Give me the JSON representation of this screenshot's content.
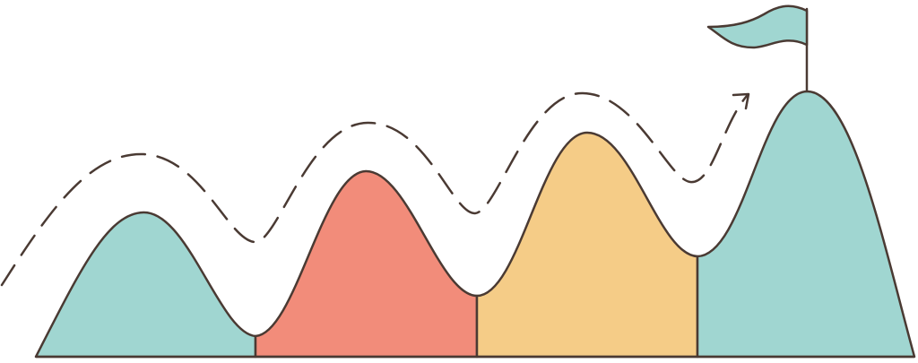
{
  "colors": {
    "outline": "#4a3a33",
    "teal": "#a0d6d1",
    "coral": "#f28c7a",
    "sand": "#f5cc87",
    "background": "#ffffff"
  },
  "mountains": [
    {
      "name": "first-peak",
      "color": "teal"
    },
    {
      "name": "second-peak",
      "color": "coral"
    },
    {
      "name": "third-peak",
      "color": "sand"
    },
    {
      "name": "summit-peak",
      "color": "teal"
    }
  ],
  "icons": {
    "flag": "flag-icon",
    "arrow": "arrow-head-icon"
  }
}
